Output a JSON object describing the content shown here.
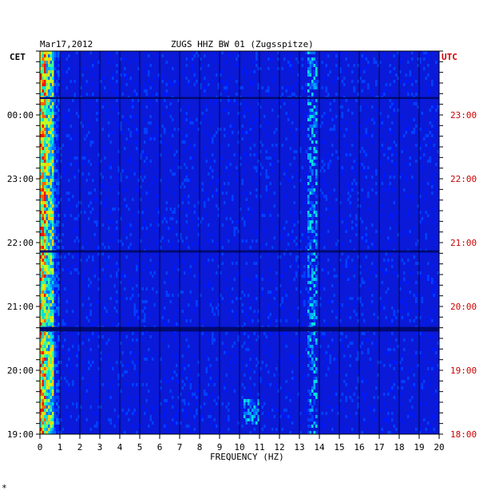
{
  "chart_data": {
    "type": "heatmap",
    "date": "Mar17,2012",
    "station": "ZUGS HHZ BW 01 (Zugsspitze)",
    "left_timezone": "CET",
    "right_timezone": "UTC",
    "xlabel": "FREQUENCY (HZ)",
    "xlim": [
      0,
      20
    ],
    "x_ticks": [
      "0",
      "1",
      "2",
      "3",
      "4",
      "5",
      "6",
      "7",
      "8",
      "9",
      "10",
      "11",
      "12",
      "13",
      "14",
      "15",
      "16",
      "17",
      "18",
      "19",
      "20"
    ],
    "left_time_ticks": [
      "00:00",
      "23:00",
      "22:00",
      "21:00",
      "20:00",
      "19:00"
    ],
    "right_time_ticks": [
      "23:00",
      "22:00",
      "21:00",
      "20:00",
      "19:00",
      "18:00"
    ],
    "colors": {
      "background_band": "#0a1ad8",
      "dark_band": "#000a70",
      "low_freq_peak": "#ff2000",
      "mid": "#00d0d0",
      "grid": "#000000",
      "utc_label": "#cc0000"
    },
    "features": [
      {
        "freq_hz": [
          0.1,
          0.6
        ],
        "description_level": "high"
      },
      {
        "freq_hz": [
          13.5,
          13.8
        ],
        "description_level": "medium"
      },
      {
        "freq_hz": [
          10.2,
          11.0
        ],
        "description_level": "medium"
      }
    ]
  },
  "footer_mark": "*"
}
